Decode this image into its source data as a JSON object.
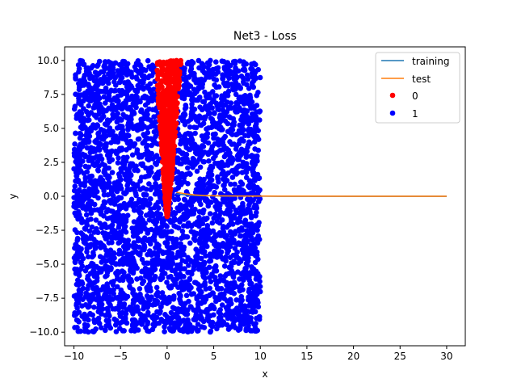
{
  "chart_data": {
    "type": "scatter",
    "title": "Net3 - Loss",
    "xlabel": "x",
    "ylabel": "y",
    "xlim": [
      -11.0,
      32.0
    ],
    "ylim": [
      -11.0,
      11.0
    ],
    "x_ticks": [
      -10,
      -5,
      0,
      5,
      10,
      15,
      20,
      25,
      30
    ],
    "y_ticks": [
      -10.0,
      -7.5,
      -5.0,
      -2.5,
      0.0,
      2.5,
      5.0,
      7.5,
      10.0
    ],
    "x_tick_labels": [
      "−10",
      "−5",
      "0",
      "5",
      "10",
      "15",
      "20",
      "25",
      "30"
    ],
    "y_tick_labels": [
      "−10.0",
      "−7.5",
      "−5.0",
      "−2.5",
      "0.0",
      "2.5",
      "5.0",
      "7.5",
      "10.0"
    ],
    "grid": false,
    "legend_position": "top-right",
    "legend_labels": [
      "training",
      "test",
      "0",
      "1"
    ],
    "colors": {
      "training": "#1f77b4",
      "test": "#ff7f0e",
      "class_0": "#ff0000",
      "class_1": "#0000ff"
    },
    "scatter_series": [
      {
        "name": "0",
        "color": "#ff0000",
        "region": "thin wedge around x = 0, apex near (0, -1.5), widening to x in [-1.2, 1.5] at y = 10"
      },
      {
        "name": "1",
        "color": "#0000ff",
        "region": "fills x in [-10, 10], y in [-10, 10] outside the class 0 wedge"
      }
    ],
    "line_series": [
      {
        "name": "training",
        "color": "#1f77b4",
        "x": [
          1,
          2,
          3,
          4,
          5,
          6,
          8,
          10,
          12,
          15,
          20,
          25,
          30
        ],
        "y": [
          0.18,
          0.1,
          0.06,
          0.04,
          0.03,
          0.02,
          0.015,
          0.01,
          0.008,
          0.006,
          0.005,
          0.004,
          0.004
        ]
      },
      {
        "name": "test",
        "color": "#ff7f0e",
        "x": [
          1,
          2,
          3,
          4,
          5,
          6,
          8,
          10,
          12,
          15,
          20,
          25,
          30
        ],
        "y": [
          0.3,
          0.18,
          0.1,
          0.06,
          0.04,
          0.03,
          0.02,
          0.015,
          0.012,
          0.01,
          0.008,
          0.007,
          0.006
        ]
      }
    ]
  }
}
